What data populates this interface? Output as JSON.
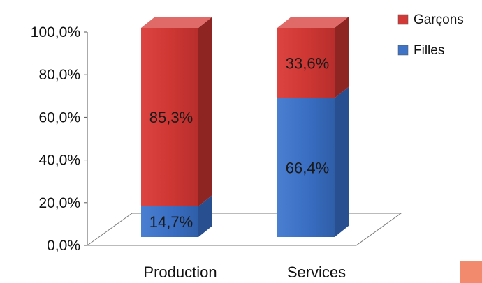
{
  "chart_data": {
    "type": "bar",
    "stacked": true,
    "three_d": true,
    "categories": [
      "Production",
      "Services"
    ],
    "series": [
      {
        "name": "Filles",
        "values": [
          14.7,
          66.4
        ],
        "labels": [
          "14,7%",
          "66,4%"
        ],
        "color": "#3f73c6"
      },
      {
        "name": "Garçons",
        "values": [
          85.3,
          33.6
        ],
        "labels": [
          "85,3%",
          "33,6%"
        ],
        "color": "#d23a37"
      }
    ],
    "ylim": [
      0,
      100
    ],
    "yticks": [
      "0,0%",
      "20,0%",
      "40,0%",
      "60,0%",
      "80,0%",
      "100,0%"
    ],
    "grid": false,
    "legend": {
      "placement": "top-right",
      "order": [
        "Garçons",
        "Filles"
      ]
    }
  }
}
